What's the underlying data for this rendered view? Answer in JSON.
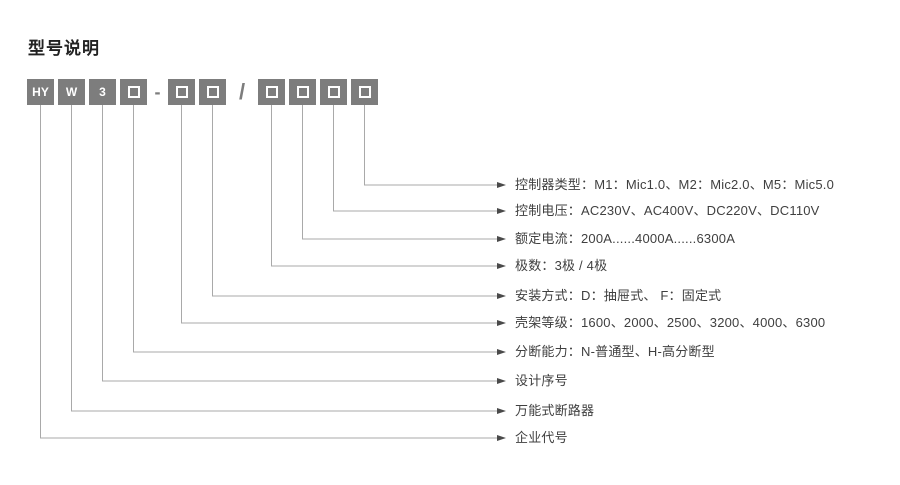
{
  "title": "型号说明",
  "model": {
    "segments": [
      {
        "kind": "box",
        "text": "HY"
      },
      {
        "kind": "box",
        "text": "W"
      },
      {
        "kind": "box",
        "text": "3"
      },
      {
        "kind": "box",
        "text": ""
      },
      {
        "kind": "separator",
        "text": "-"
      },
      {
        "kind": "box",
        "text": ""
      },
      {
        "kind": "box",
        "text": ""
      },
      {
        "kind": "separator",
        "text": "/"
      },
      {
        "kind": "box",
        "text": ""
      },
      {
        "kind": "box",
        "text": ""
      },
      {
        "kind": "box",
        "text": ""
      },
      {
        "kind": "box",
        "text": ""
      }
    ]
  },
  "rows": [
    {
      "text": "控制器类型：M1：Mic1.0、M2：Mic2.0、M5：Mic5.0"
    },
    {
      "text": "控制电压：AC230V、AC400V、DC220V、DC110V"
    },
    {
      "text": "额定电流：200A......4000A......6300A"
    },
    {
      "text": "极数：3极 / 4极"
    },
    {
      "text": "安装方式：D：抽屉式、 F：固定式"
    },
    {
      "text": "壳架等级：1600、2000、2500、3200、4000、6300"
    },
    {
      "text": "分断能力：N-普通型、H-高分断型"
    },
    {
      "text": "设计序号"
    },
    {
      "text": "万能式断路器"
    },
    {
      "text": "企业代号"
    }
  ],
  "colors": {
    "box_bg": "#7d7d7d",
    "box_text": "#ffffff",
    "line": "#a9a9a9",
    "arrow": "#4a4a4a",
    "label_text": "#404040",
    "title_text": "#222222",
    "separator": "#7d7d7d",
    "page_bg": "#ffffff"
  }
}
